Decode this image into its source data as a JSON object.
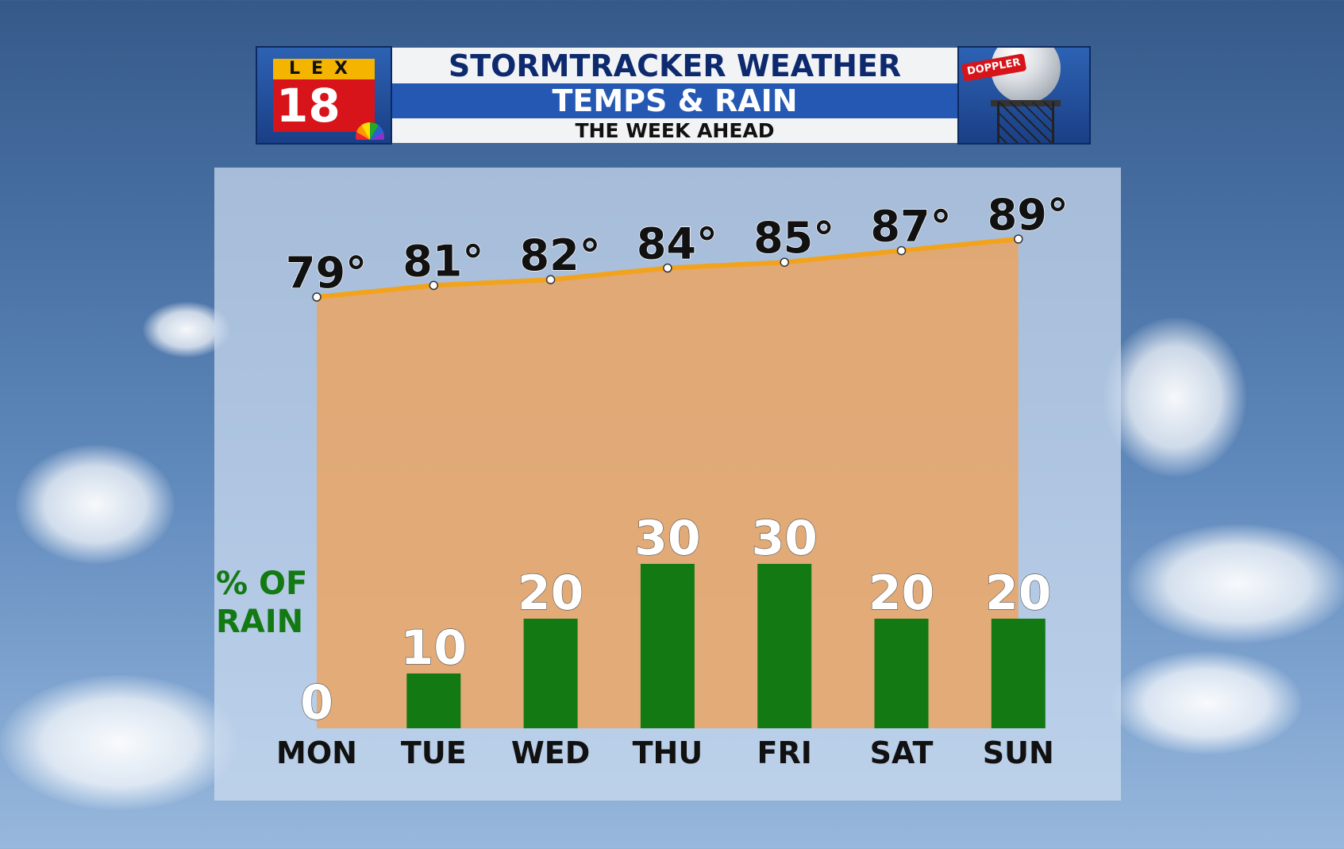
{
  "header": {
    "logo_top": "LEX",
    "logo_number": "18",
    "title_line1": "STORMTRACKER WEATHER",
    "title_line2": "TEMPS & RAIN",
    "title_line3": "THE WEEK AHEAD",
    "radar_label": "DOPPLER"
  },
  "rain_label": {
    "line1": "% OF",
    "line2": "RAIN"
  },
  "colors": {
    "temp_line": "#f2a31b",
    "temp_area": "#eba35f",
    "rain_bar": "#137a13",
    "label_text": "#111111"
  },
  "chart_data": {
    "type": "bar",
    "categories": [
      "MON",
      "TUE",
      "WED",
      "THU",
      "FRI",
      "SAT",
      "SUN"
    ],
    "series": [
      {
        "name": "% OF RAIN",
        "type": "bar",
        "values": [
          0,
          10,
          20,
          30,
          30,
          20,
          20
        ]
      },
      {
        "type": "area-line",
        "values": [
          79,
          81,
          82,
          84,
          85,
          87,
          89
        ],
        "unit": "°"
      }
    ],
    "title": "TEMPS & RAIN",
    "subtitle": "THE WEEK AHEAD"
  }
}
